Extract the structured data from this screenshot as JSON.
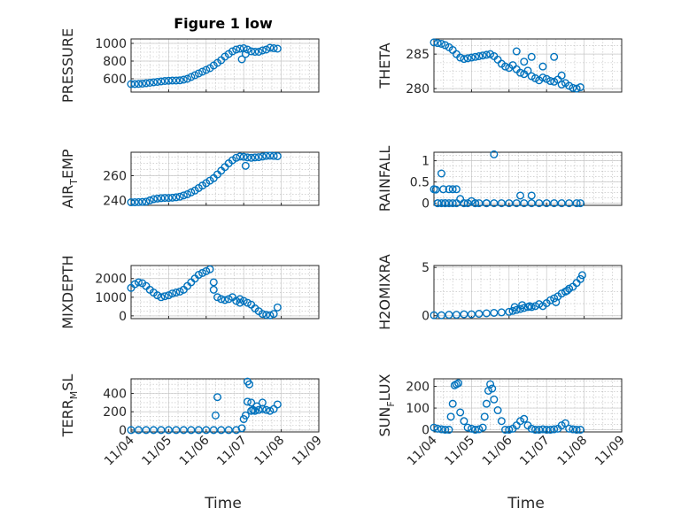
{
  "figure": {
    "title": "Figure 1 low",
    "xlabel": "Time"
  },
  "colors": {
    "marker": "#0072BD",
    "axis": "#262626"
  },
  "xticks": [
    "11/04",
    "11/05",
    "11/06",
    "11/07",
    "11/08",
    "11/09"
  ],
  "chart_data": [
    {
      "type": "scatter",
      "title": "Figure 1 low",
      "ylabel": "PRESSURE",
      "ylabel_sub": null,
      "ylim": [
        450,
        1050
      ],
      "yticks": [
        600,
        800,
        1000
      ],
      "xlim": [
        0,
        5
      ],
      "grid": true,
      "x": [
        0.0,
        0.1,
        0.2,
        0.3,
        0.4,
        0.5,
        0.6,
        0.7,
        0.8,
        0.9,
        1.0,
        1.1,
        1.2,
        1.3,
        1.4,
        1.5,
        1.6,
        1.7,
        1.8,
        1.9,
        2.0,
        2.1,
        2.2,
        2.3,
        2.4,
        2.5,
        2.6,
        2.7,
        2.8,
        2.9,
        3.0,
        3.1,
        3.2,
        3.3,
        3.4,
        3.5,
        3.6,
        3.7,
        3.8,
        3.9,
        2.95,
        3.05
      ],
      "y": [
        540,
        540,
        542,
        545,
        550,
        555,
        560,
        565,
        570,
        575,
        578,
        580,
        580,
        582,
        590,
        600,
        620,
        640,
        660,
        680,
        700,
        720,
        750,
        780,
        810,
        850,
        880,
        910,
        930,
        940,
        945,
        930,
        910,
        905,
        905,
        920,
        930,
        950,
        945,
        940,
        820,
        880
      ]
    },
    {
      "type": "scatter",
      "title": "",
      "ylabel": "THETA",
      "ylabel_sub": null,
      "ylim": [
        279.5,
        287.2
      ],
      "yticks": [
        280,
        285
      ],
      "xlim": [
        0,
        5
      ],
      "grid": true,
      "x": [
        0.0,
        0.1,
        0.2,
        0.3,
        0.4,
        0.5,
        0.6,
        0.7,
        0.8,
        0.9,
        1.0,
        1.1,
        1.2,
        1.3,
        1.4,
        1.5,
        1.6,
        1.7,
        1.8,
        1.9,
        2.0,
        2.1,
        2.2,
        2.3,
        2.4,
        2.5,
        2.6,
        2.7,
        2.8,
        2.9,
        3.0,
        3.1,
        3.2,
        3.3,
        3.4,
        3.5,
        3.6,
        3.7,
        3.8,
        3.9,
        2.2,
        2.4,
        2.6,
        2.9,
        3.2,
        3.4
      ],
      "y": [
        286.7,
        286.6,
        286.5,
        286.3,
        286.0,
        285.6,
        285.0,
        284.5,
        284.3,
        284.4,
        284.5,
        284.6,
        284.7,
        284.8,
        284.9,
        285.0,
        284.7,
        284.2,
        283.6,
        283.2,
        283.0,
        283.4,
        282.8,
        282.3,
        282.1,
        282.6,
        281.8,
        281.5,
        281.2,
        281.6,
        281.4,
        281.1,
        281.0,
        281.3,
        280.6,
        280.8,
        280.4,
        280.1,
        280.0,
        280.2,
        285.4,
        283.9,
        284.6,
        283.2,
        284.6,
        281.9
      ]
    },
    {
      "type": "scatter",
      "title": "",
      "ylabel": "AIR",
      "ylabel_sub": "T",
      "ylabel_rest": "EMP",
      "ylim": [
        236,
        279
      ],
      "yticks": [
        240,
        260
      ],
      "xlim": [
        0,
        5
      ],
      "grid": true,
      "x": [
        0.0,
        0.1,
        0.2,
        0.3,
        0.4,
        0.5,
        0.6,
        0.7,
        0.8,
        0.9,
        1.0,
        1.1,
        1.2,
        1.3,
        1.4,
        1.5,
        1.6,
        1.7,
        1.8,
        1.9,
        2.0,
        2.1,
        2.2,
        2.3,
        2.4,
        2.5,
        2.6,
        2.7,
        2.8,
        2.9,
        3.0,
        3.1,
        3.2,
        3.3,
        3.4,
        3.5,
        3.6,
        3.7,
        3.8,
        3.9,
        3.05
      ],
      "y": [
        238.5,
        238.5,
        238.6,
        238.8,
        239.0,
        240.0,
        241.0,
        241.5,
        241.8,
        242.0,
        242.0,
        242.2,
        242.5,
        243.0,
        244.0,
        245.0,
        246.5,
        248.0,
        250.0,
        252.0,
        254.0,
        256.0,
        258.0,
        261.0,
        264.0,
        267.0,
        270.0,
        272.5,
        274.5,
        275.5,
        275.3,
        274.8,
        274.5,
        274.8,
        275.0,
        275.5,
        276.0,
        276.2,
        276.0,
        275.8,
        268.0
      ]
    },
    {
      "type": "scatter",
      "title": "",
      "ylabel": "RAINFALL",
      "ylabel_sub": null,
      "ylim": [
        -0.05,
        1.2
      ],
      "yticks": [
        0,
        0.5,
        1
      ],
      "xlim": [
        0,
        5
      ],
      "grid": true,
      "x": [
        0.0,
        0.05,
        0.1,
        0.2,
        0.25,
        0.3,
        0.4,
        0.5,
        0.6,
        0.7,
        0.8,
        0.9,
        1.0,
        1.1,
        1.2,
        1.4,
        1.6,
        1.8,
        2.0,
        2.2,
        2.4,
        2.6,
        2.8,
        3.0,
        3.2,
        3.4,
        3.6,
        3.8,
        3.9,
        0.2,
        0.4,
        0.6,
        0.8,
        1.1,
        1.4,
        1.6,
        2.3,
        2.6,
        0.1,
        0.3,
        0.5
      ],
      "y": [
        0.33,
        0.32,
        0.0,
        0.7,
        0.33,
        0.0,
        0.33,
        0.33,
        0.0,
        0.1,
        0.0,
        0.0,
        0.05,
        0.0,
        0.0,
        0.0,
        0.0,
        0.0,
        0.0,
        0.0,
        0.0,
        0.0,
        0.0,
        0.0,
        0.0,
        0.0,
        0.0,
        0.0,
        0.0,
        0.0,
        0.0,
        0.33,
        0.0,
        0.0,
        0.0,
        1.15,
        0.18,
        0.18,
        0.0,
        0.0,
        0.0
      ]
    },
    {
      "type": "scatter",
      "title": "",
      "ylabel": "MIXDEPTH",
      "ylabel_sub": null,
      "ylim": [
        -150,
        2700
      ],
      "yticks": [
        0,
        1000,
        2000
      ],
      "xlim": [
        0,
        5
      ],
      "grid": true,
      "x": [
        0.0,
        0.1,
        0.2,
        0.3,
        0.4,
        0.5,
        0.6,
        0.7,
        0.8,
        0.9,
        1.0,
        1.1,
        1.2,
        1.3,
        1.4,
        1.5,
        1.6,
        1.7,
        1.8,
        1.9,
        2.0,
        2.1,
        2.2,
        2.3,
        2.4,
        2.5,
        2.6,
        2.7,
        2.8,
        2.9,
        3.0,
        3.1,
        3.2,
        3.3,
        3.4,
        3.5,
        3.6,
        3.7,
        3.8,
        3.9,
        2.2,
        2.9
      ],
      "y": [
        1500,
        1700,
        1800,
        1750,
        1600,
        1400,
        1250,
        1100,
        1000,
        1050,
        1100,
        1200,
        1250,
        1300,
        1400,
        1600,
        1800,
        2000,
        2200,
        2300,
        2400,
        2500,
        1800,
        1000,
        900,
        850,
        900,
        1000,
        800,
        700,
        800,
        700,
        600,
        400,
        250,
        100,
        50,
        30,
        100,
        450,
        1400,
        900
      ]
    },
    {
      "type": "scatter",
      "title": "",
      "ylabel": "H2OMIXRA",
      "ylabel_sub": null,
      "ylim": [
        -0.3,
        5.2
      ],
      "yticks": [
        0,
        5
      ],
      "xlim": [
        0,
        5
      ],
      "grid": true,
      "x": [
        0.0,
        0.2,
        0.4,
        0.6,
        0.8,
        1.0,
        1.2,
        1.4,
        1.6,
        1.8,
        2.0,
        2.1,
        2.2,
        2.3,
        2.4,
        2.5,
        2.6,
        2.7,
        2.8,
        2.9,
        3.0,
        3.1,
        3.2,
        3.3,
        3.4,
        3.5,
        3.6,
        3.7,
        3.8,
        3.9,
        3.95,
        2.15,
        2.35,
        2.55,
        3.25,
        3.55
      ],
      "y": [
        0.05,
        0.05,
        0.1,
        0.1,
        0.15,
        0.15,
        0.2,
        0.25,
        0.3,
        0.35,
        0.4,
        0.5,
        0.6,
        0.7,
        0.8,
        0.9,
        0.9,
        1.0,
        1.2,
        1.0,
        1.3,
        1.6,
        1.8,
        2.0,
        2.3,
        2.5,
        2.8,
        3.0,
        3.4,
        3.8,
        4.2,
        0.9,
        1.1,
        1.0,
        1.4,
        2.6
      ]
    },
    {
      "type": "scatter",
      "title": "",
      "ylabel": "TERR",
      "ylabel_sub": "M",
      "ylabel_rest": "SL",
      "ylim": [
        -20,
        560
      ],
      "yticks": [
        0,
        200,
        400
      ],
      "xlim": [
        0,
        5
      ],
      "grid": true,
      "x": [
        0.0,
        0.2,
        0.4,
        0.6,
        0.8,
        1.0,
        1.2,
        1.4,
        1.6,
        1.8,
        2.0,
        2.2,
        2.4,
        2.6,
        2.8,
        2.95,
        3.0,
        3.05,
        3.1,
        3.15,
        3.2,
        3.25,
        3.3,
        3.4,
        3.5,
        3.6,
        3.7,
        3.8,
        3.9,
        2.25,
        2.3,
        3.1,
        3.2,
        3.35,
        3.5
      ],
      "y": [
        0,
        0,
        0,
        0,
        0,
        0,
        0,
        0,
        0,
        0,
        0,
        0,
        0,
        0,
        0,
        20,
        120,
        160,
        530,
        500,
        300,
        220,
        210,
        220,
        230,
        220,
        210,
        230,
        280,
        160,
        360,
        310,
        210,
        260,
        300
      ]
    },
    {
      "type": "scatter",
      "title": "",
      "ylabel": "SUN",
      "ylabel_sub": "F",
      "ylabel_rest": "LUX",
      "ylim": [
        -10,
        235
      ],
      "yticks": [
        0,
        100,
        200
      ],
      "xlim": [
        0,
        5
      ],
      "grid": true,
      "x": [
        0.0,
        0.1,
        0.2,
        0.3,
        0.4,
        0.45,
        0.5,
        0.55,
        0.6,
        0.65,
        0.7,
        0.8,
        0.9,
        1.0,
        1.1,
        1.2,
        1.3,
        1.35,
        1.4,
        1.45,
        1.5,
        1.55,
        1.6,
        1.7,
        1.8,
        1.9,
        2.0,
        2.1,
        2.2,
        2.3,
        2.4,
        2.5,
        2.6,
        2.7,
        2.8,
        2.9,
        3.0,
        3.1,
        3.2,
        3.3,
        3.4,
        3.5,
        3.6,
        3.7,
        3.8,
        3.9
      ],
      "y": [
        10,
        5,
        2,
        0,
        0,
        60,
        120,
        205,
        210,
        215,
        80,
        40,
        10,
        5,
        0,
        2,
        10,
        60,
        120,
        180,
        210,
        190,
        140,
        90,
        40,
        0,
        0,
        5,
        20,
        40,
        50,
        20,
        5,
        0,
        0,
        2,
        0,
        0,
        2,
        5,
        20,
        30,
        5,
        2,
        0,
        0
      ]
    }
  ]
}
